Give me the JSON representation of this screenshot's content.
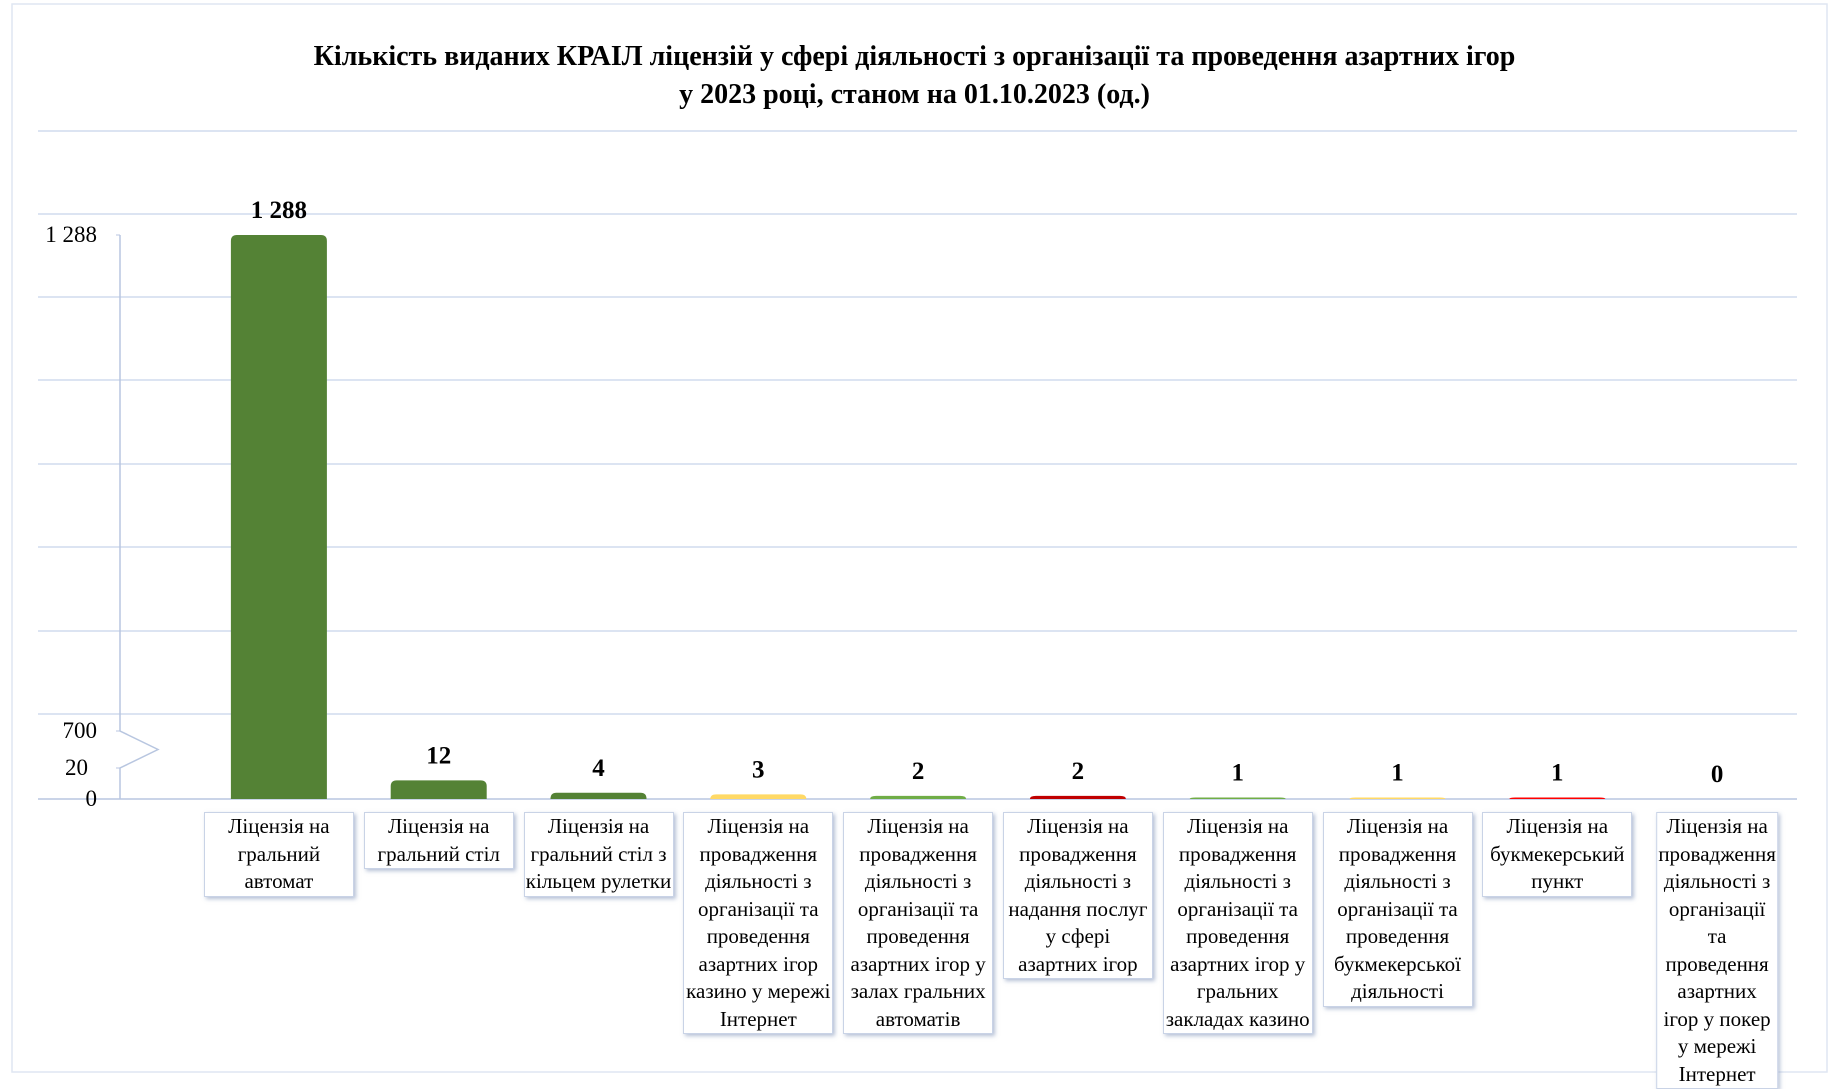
{
  "chart_data": {
    "type": "bar",
    "title": "Кількість  виданих КРАІЛ ліцензій у сфері діяльності з організації та  проведення азартних  ігор\nу 2023 році, станом  на 01.10.2023 (од.)",
    "categories": [
      "Ліцензія на гральний автомат",
      "Ліцензія на гральний стіл",
      "Ліцензія на гральний стіл з кільцем рулетки",
      "Ліцензія на провадження діяльності з організації та проведення азартних ігор казино у мережі Інтернет",
      "Ліцензія на провадження діяльності з організації та проведення азартних ігор у залах гральних автоматів",
      "Ліцензія на провадження діяльності з надання послуг у сфері азартних ігор",
      "Ліцензія на провадження діяльності з організації та проведення азартних ігор у гральних закладах казино",
      "Ліцензія на провадження діяльності з організації та проведення букмекерської діяльності",
      "Ліцензія на букмекерський пункт",
      "Ліцензія на провадження діяльності з організації та проведення азартних ігор у покер у мережі Інтернет"
    ],
    "values": [
      1288,
      12,
      4,
      3,
      2,
      2,
      1,
      1,
      1,
      0
    ],
    "value_labels": [
      "1 288",
      "12",
      "4",
      "3",
      "2",
      "2",
      "1",
      "1",
      "1",
      "0"
    ],
    "colors": [
      "#548235",
      "#548235",
      "#548235",
      "#ffd966",
      "#70ad47",
      "#c00000",
      "#70ad47",
      "#ffd966",
      "#ff0000",
      "#70ad47"
    ],
    "ylim": [
      0,
      1288
    ],
    "yticks": [
      0,
      20,
      700,
      {
        "value": 1288,
        "label": "1 288"
      }
    ],
    "axis_break": [
      20,
      700
    ]
  }
}
